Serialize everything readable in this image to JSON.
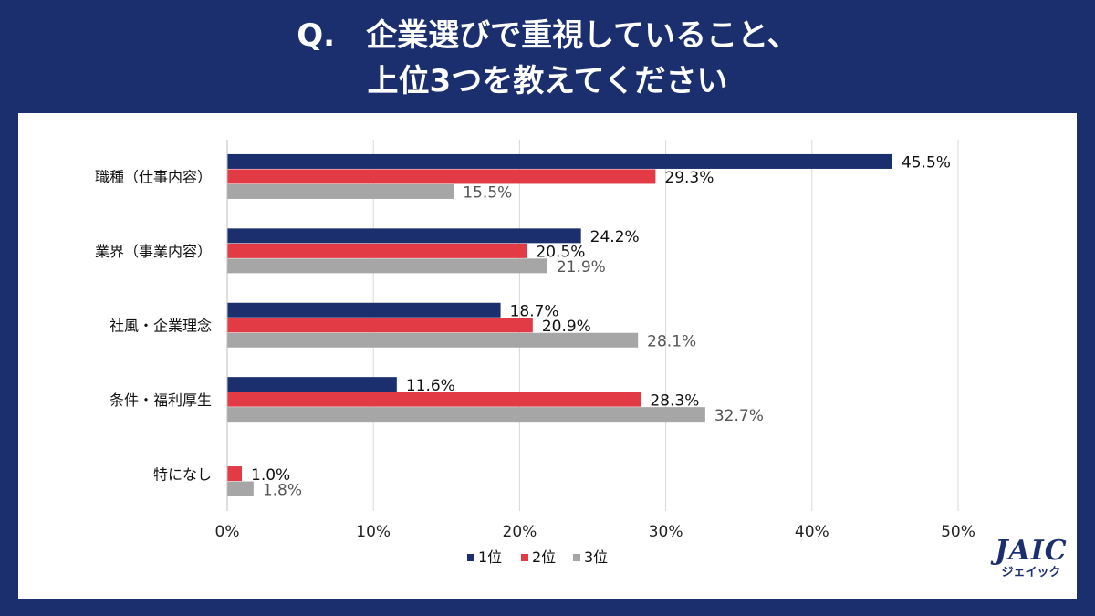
{
  "title": {
    "line1": "Q.　企業選びで重視していること、",
    "line2": "上位3つを教えてください"
  },
  "logo": {
    "main": "JAIC",
    "sub": "ジェイック"
  },
  "colors": {
    "background": "#1b2f6e",
    "series1": "#1b2f6e",
    "series2": "#e23b45",
    "series3": "#a6a6a6"
  },
  "chart_data": {
    "type": "bar",
    "orientation": "horizontal",
    "categories": [
      "職種（仕事内容）",
      "業界（事業内容）",
      "社風・企業理念",
      "条件・福利厚生",
      "特になし"
    ],
    "series": [
      {
        "name": "1位",
        "values": [
          45.5,
          24.2,
          18.7,
          11.6,
          null
        ],
        "labels": [
          "45.5%",
          "24.2%",
          "18.7%",
          "11.6%",
          ""
        ]
      },
      {
        "name": "2位",
        "values": [
          29.3,
          20.5,
          20.9,
          28.3,
          1.0
        ],
        "labels": [
          "29.3%",
          "20.5%",
          "20.9%",
          "28.3%",
          "1.0%"
        ]
      },
      {
        "name": "3位",
        "values": [
          15.5,
          21.9,
          28.1,
          32.7,
          1.8
        ],
        "labels": [
          "15.5%",
          "21.9%",
          "28.1%",
          "32.7%",
          "1.8%"
        ]
      }
    ],
    "xlim": [
      0,
      50
    ],
    "xticks": [
      0,
      10,
      20,
      30,
      40,
      50
    ],
    "xtick_labels": [
      "0%",
      "10%",
      "20%",
      "30%",
      "40%",
      "50%"
    ],
    "grid": true,
    "legend_position": "bottom-center"
  }
}
